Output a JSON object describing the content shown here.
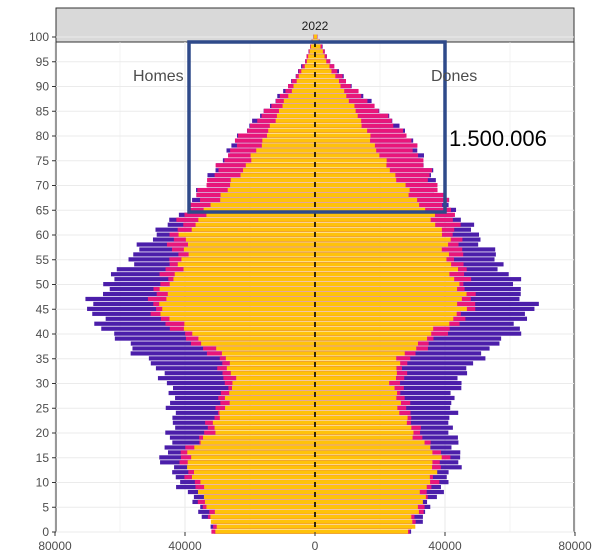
{
  "chart_data": {
    "type": "bar",
    "orientation": "horizontal-population-pyramid",
    "facet": "2022",
    "title": "",
    "xlabel": "",
    "ylabel": "",
    "xlim": [
      -90000,
      90000
    ],
    "ylim": [
      0,
      100
    ],
    "x_ticks": [
      -80000,
      -40000,
      0,
      40000,
      80000
    ],
    "x_tick_labels": [
      "80000",
      "40000",
      "0",
      "40000",
      "80000"
    ],
    "y_ticks": [
      0,
      5,
      10,
      15,
      20,
      25,
      30,
      35,
      40,
      45,
      50,
      55,
      60,
      65,
      70,
      75,
      80,
      85,
      90,
      95,
      100
    ],
    "grid": true,
    "left_label": "Homes",
    "right_label": "Dones",
    "annotation": {
      "text": "1.500.006",
      "box_age_range": [
        65,
        100
      ],
      "box_x_range": [
        -42000,
        43000
      ]
    },
    "colors": {
      "yellow": "#FFC20A",
      "pink": "#E8167A",
      "purple": "#4B1EAA",
      "dash": "#000000",
      "box": "#2F4A8A",
      "strip": "#D9D9D9"
    },
    "series": [
      {
        "name": "",
        "color": "#FFC20A",
        "layer": "inner",
        "ages": [
          0,
          5,
          10,
          15,
          20,
          25,
          30,
          35,
          40,
          45,
          50,
          55,
          60,
          65,
          70,
          75,
          80,
          85,
          90,
          95,
          100
        ],
        "male": [
          30000,
          33000,
          36000,
          40000,
          32000,
          28000,
          25000,
          27000,
          38000,
          48000,
          45000,
          40000,
          40000,
          33000,
          26000,
          20000,
          15000,
          11000,
          6500,
          2500,
          400
        ],
        "female": [
          29000,
          32000,
          35000,
          38000,
          30000,
          26000,
          24000,
          26000,
          36000,
          46000,
          44000,
          41000,
          40000,
          34000,
          27000,
          21000,
          16500,
          12500,
          8000,
          3500,
          600
        ]
      },
      {
        "name": "",
        "color": "#E8167A",
        "layer": "middle",
        "ages": [
          0,
          5,
          10,
          15,
          20,
          25,
          30,
          35,
          40,
          45,
          50,
          55,
          60,
          65,
          70,
          75,
          80,
          85,
          90,
          95,
          100
        ],
        "male": [
          30500,
          34000,
          37500,
          42000,
          34000,
          30000,
          27500,
          30000,
          42000,
          51000,
          48000,
          44000,
          44000,
          39000,
          34000,
          28000,
          23000,
          15000,
          8000,
          3000,
          500
        ],
        "female": [
          29500,
          33000,
          36500,
          40000,
          32000,
          28500,
          26500,
          29000,
          40000,
          49000,
          47000,
          45000,
          44000,
          42000,
          37000,
          33000,
          28500,
          20000,
          11000,
          4500,
          700
        ]
      },
      {
        "name": "",
        "color": "#4B1EAA",
        "layer": "outer",
        "ages": [
          0,
          5,
          10,
          15,
          20,
          25,
          30,
          35,
          40,
          45,
          50,
          55,
          60,
          65,
          70,
          75,
          80,
          85,
          90,
          95,
          100
        ],
        "male": [
          31000,
          36000,
          42000,
          47000,
          44000,
          44000,
          45000,
          52000,
          63000,
          70000,
          64000,
          57000,
          50000,
          39500,
          34500,
          28500,
          23500,
          15500,
          8300,
          3100,
          500
        ],
        "female": [
          30000,
          35000,
          40500,
          45000,
          42000,
          42000,
          44000,
          50000,
          61000,
          67000,
          62000,
          56000,
          50000,
          42500,
          37500,
          33500,
          29000,
          20500,
          11300,
          4600,
          700
        ]
      }
    ]
  }
}
